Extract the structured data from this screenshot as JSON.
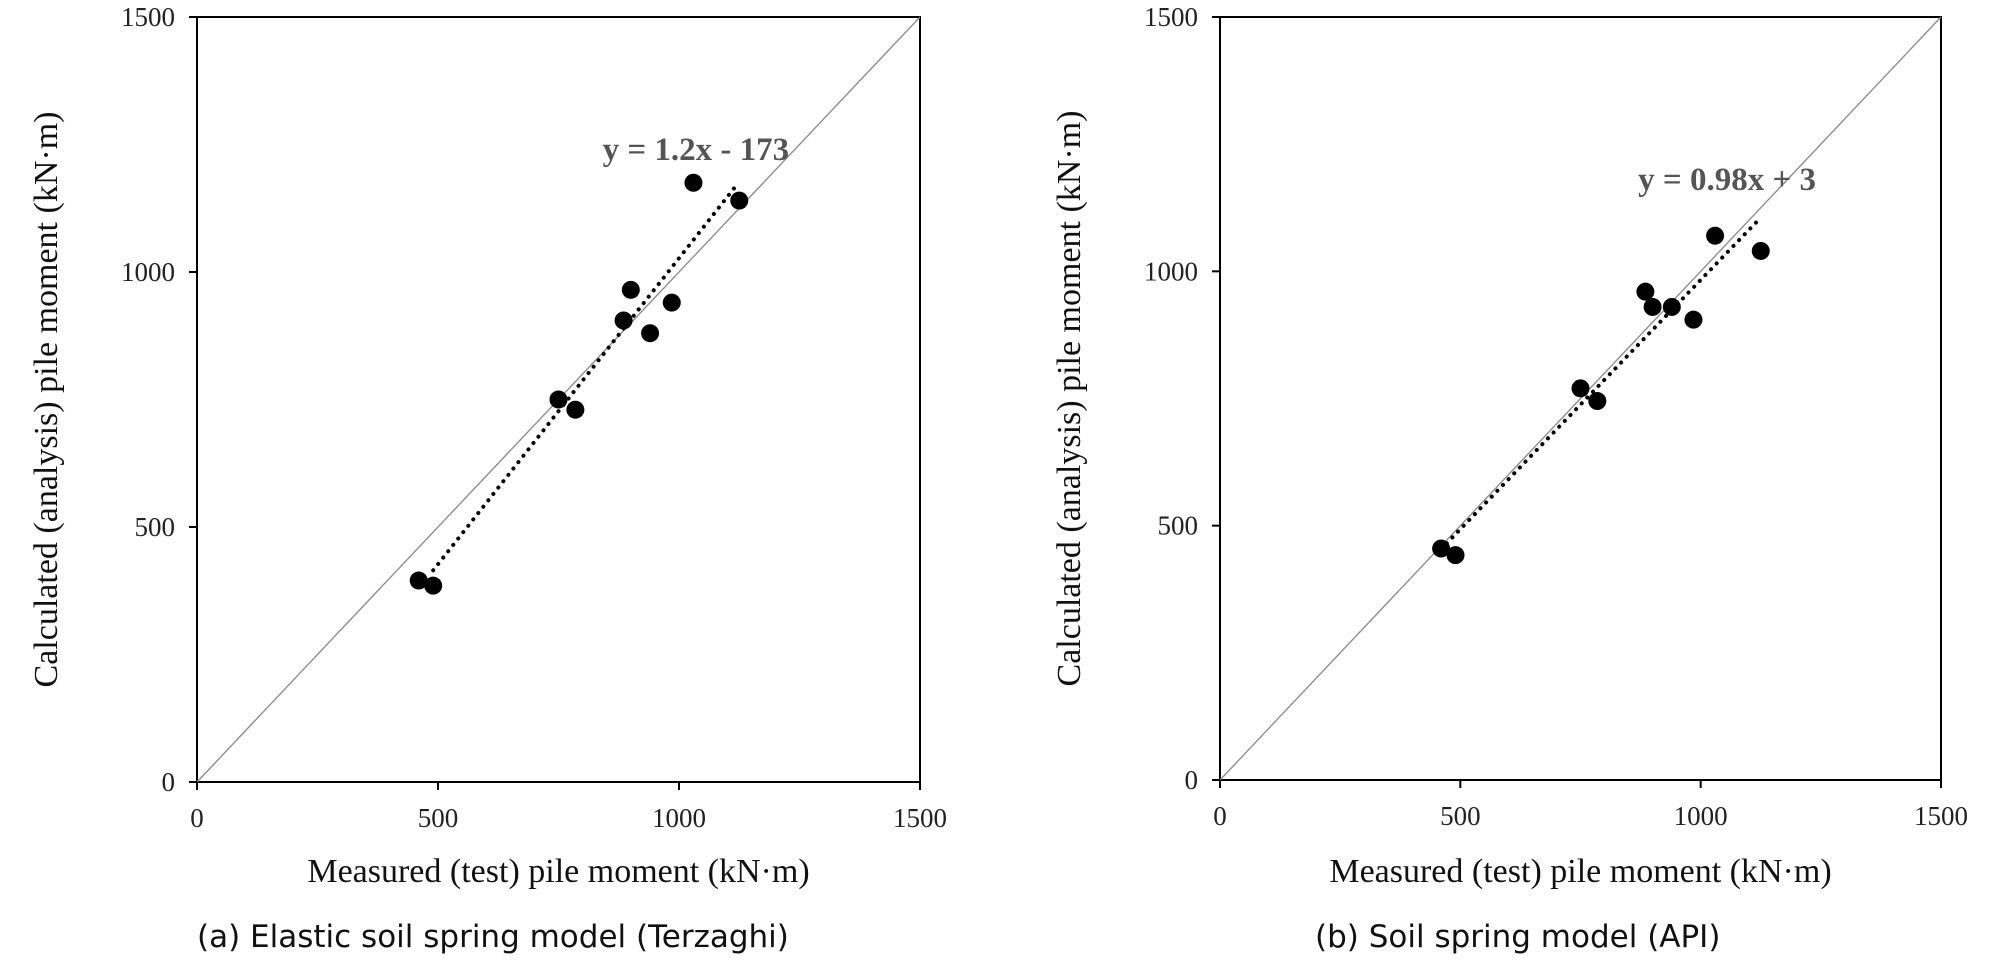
{
  "chart_data": [
    {
      "type": "scatter",
      "xlabel": "Measured (test) pile moment (kN·m)",
      "ylabel": "Calculated (analysis) pile moment (kN·m)",
      "caption": "(a) Elastic soil spring model (Terzaghi)",
      "xlim": [
        0,
        1500
      ],
      "ylim": [
        0,
        1500
      ],
      "xticks": [
        "0",
        "500",
        "1000",
        "1500"
      ],
      "yticks": [
        "0",
        "500",
        "1000",
        "1500"
      ],
      "reference_line": "y = x",
      "trendline": {
        "label": "y = 1.2x - 173",
        "slope": 1.2,
        "intercept": -173,
        "x_range": [
          490,
          1120
        ],
        "style": "dotted"
      },
      "points": [
        {
          "x": 460,
          "y": 395
        },
        {
          "x": 490,
          "y": 385
        },
        {
          "x": 750,
          "y": 750
        },
        {
          "x": 785,
          "y": 730
        },
        {
          "x": 885,
          "y": 905
        },
        {
          "x": 900,
          "y": 965
        },
        {
          "x": 940,
          "y": 880
        },
        {
          "x": 985,
          "y": 940
        },
        {
          "x": 1030,
          "y": 1175
        },
        {
          "x": 1125,
          "y": 1140
        }
      ],
      "grid": false,
      "point_color": "#000000",
      "line_color": "#888888"
    },
    {
      "type": "scatter",
      "xlabel": "Measured (test) pile moment (kN·m)",
      "ylabel": "Calculated (analysis) pile moment (kN·m)",
      "caption": "(b) Soil spring model (API)",
      "xlim": [
        0,
        1500
      ],
      "ylim": [
        0,
        1500
      ],
      "xticks": [
        "0",
        "500",
        "1000",
        "1500"
      ],
      "yticks": [
        "0",
        "500",
        "1000",
        "1500"
      ],
      "reference_line": "y = x",
      "trendline": {
        "label": "y = 0.98x + 3",
        "slope": 0.98,
        "intercept": 3,
        "x_range": [
          460,
          1120
        ],
        "style": "dotted"
      },
      "points": [
        {
          "x": 460,
          "y": 455
        },
        {
          "x": 490,
          "y": 442
        },
        {
          "x": 750,
          "y": 770
        },
        {
          "x": 785,
          "y": 745
        },
        {
          "x": 885,
          "y": 960
        },
        {
          "x": 900,
          "y": 930
        },
        {
          "x": 940,
          "y": 930
        },
        {
          "x": 985,
          "y": 905
        },
        {
          "x": 1030,
          "y": 1070
        },
        {
          "x": 1125,
          "y": 1040
        }
      ],
      "grid": false,
      "point_color": "#000000",
      "line_color": "#888888"
    }
  ]
}
